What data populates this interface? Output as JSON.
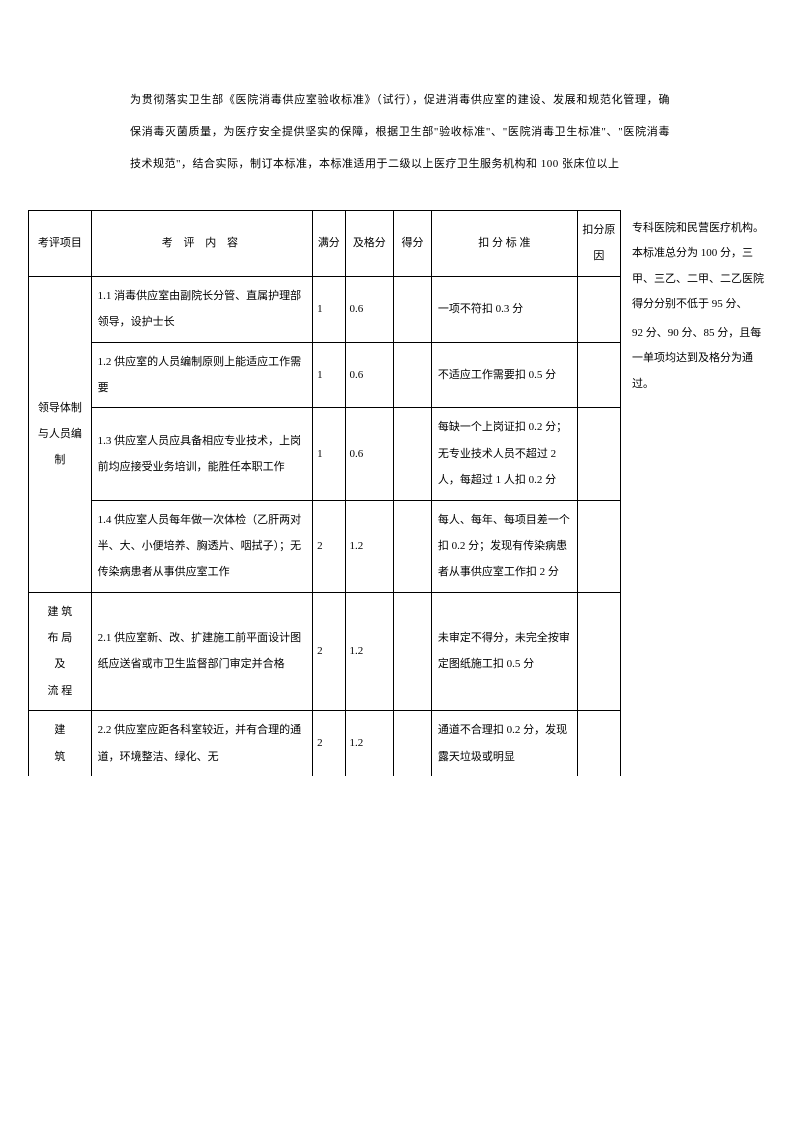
{
  "intro": "为贯彻落实卫生部《医院消毒供应室验收标准》（试行），促进消毒供应室的建设、发展和规范化管理，确保消毒灭菌质量，为医疗安全提供坚实的保障，根据卫生部\"验收标准\"、\"医院消毒卫生标准\"、\"医院消毒技术规范\"，结合实际，制订本标准，本标准适用于二级以上医疗卫生服务机构和 100 张床位以上",
  "sideNote": {
    "p1": "专科医院和民营医疗机构。本标准总分为 100 分，三甲、三乙、二甲、二乙医院得分分别不低于 95 分、",
    "p2": "92 分、90 分、85 分，且每一单项均达到及格分为通过。"
  },
  "headers": {
    "category": "考评项目",
    "content": "考 评 内 容",
    "full": "满分",
    "pass": "及格分",
    "score": "得分",
    "deduct": "扣 分 标 准",
    "reason": "扣分原因"
  },
  "sections": [
    {
      "category": "领导体制与人员编制",
      "rows": [
        {
          "content": "1.1 消毒供应室由副院长分管、直属护理部领导，设护士长",
          "full": "1",
          "pass": "0.6",
          "score": "",
          "deduct": "一项不符扣 0.3 分",
          "reason": ""
        },
        {
          "content": "1.2 供应室的人员编制原则上能适应工作需要",
          "full": "1",
          "pass": "0.6",
          "score": "",
          "deduct": "不适应工作需要扣 0.5 分",
          "reason": ""
        },
        {
          "content": "1.3 供应室人员应具备相应专业技术，上岗前均应接受业务培训，能胜任本职工作",
          "full": "1",
          "pass": "0.6",
          "score": "",
          "deduct": "每缺一个上岗证扣 0.2 分；无专业技术人员不超过 2 人，每超过 1 人扣 0.2 分",
          "reason": ""
        },
        {
          "content": "1.4 供应室人员每年做一次体检（乙肝两对半、大、小便培养、胸透片、咽拭子）；无传染病患者从事供应室工作",
          "full": "2",
          "pass": "1.2",
          "score": "",
          "deduct": "每人、每年、每项目差一个扣 0.2 分；发现有传染病患者从事供应室工作扣 2 分",
          "reason": ""
        }
      ]
    },
    {
      "category": "建 筑\n布 局\n及\n流 程",
      "rows": [
        {
          "content": "2.1 供应室新、改、扩建施工前平面设计图纸应送省或市卫生监督部门审定并合格",
          "full": "2",
          "pass": "1.2",
          "score": "",
          "deduct": "未审定不得分，未完全按审定图纸施工扣 0.5 分",
          "reason": ""
        }
      ]
    },
    {
      "category": "建\n筑",
      "rows": [
        {
          "content": "2.2 供应室应距各科室较近，并有合理的通道，环境整洁、绿化、无",
          "full": "2",
          "pass": "1.2",
          "score": "",
          "deduct": "通道不合理扣 0.2 分，发现露天垃圾或明显",
          "reason": ""
        }
      ]
    }
  ],
  "style": {
    "pageWidth": 793,
    "pageHeight": 1122,
    "background": "#ffffff",
    "textColor": "#000000",
    "borderColor": "#000000",
    "fontSize": 11,
    "fontFamily": "SimSun"
  }
}
